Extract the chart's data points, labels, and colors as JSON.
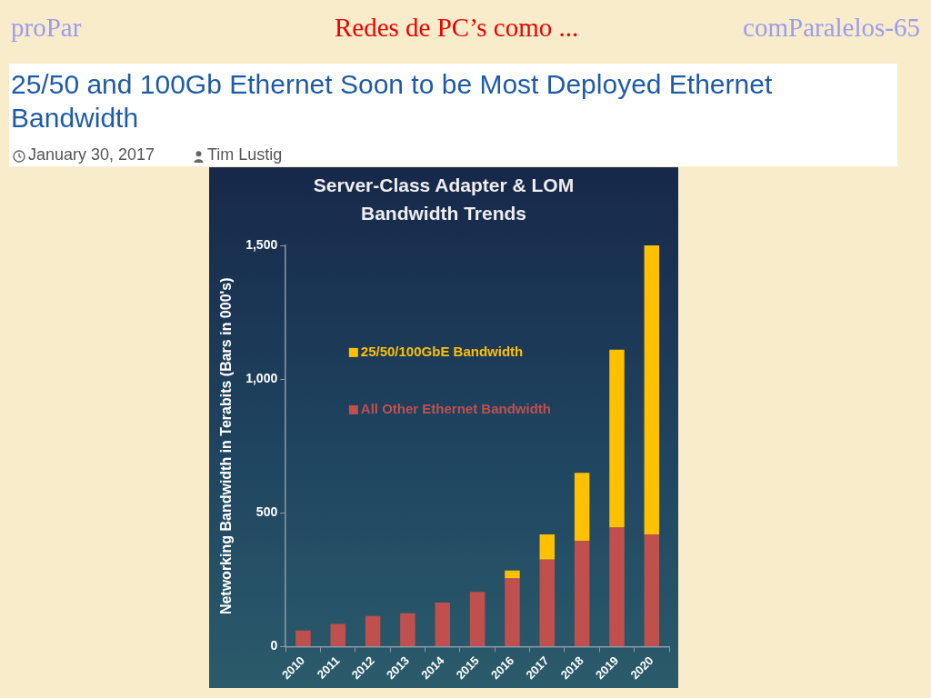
{
  "chart_data": {
    "type": "bar",
    "stacked": true,
    "title": "Server-Class Adapter & LOM Bandwidth Trends",
    "ylabel": "Networking Bandwidth in Terabits (Bars in 000's)",
    "categories": [
      "2010",
      "2011",
      "2012",
      "2013",
      "2014",
      "2015",
      "2016",
      "2017",
      "2018",
      "2019",
      "2020"
    ],
    "series": [
      {
        "name": "All Other Ethernet Bandwidth",
        "color": "#c0504d",
        "values": [
          60,
          85,
          115,
          125,
          165,
          205,
          255,
          325,
          395,
          445,
          420
        ]
      },
      {
        "name": "25/50/100GbE Bandwidth",
        "color": "#ffc000",
        "values": [
          null,
          null,
          null,
          null,
          null,
          null,
          30,
          95,
          255,
          665,
          1080
        ]
      }
    ],
    "ylim": [
      0,
      1500
    ],
    "yticks": [
      0,
      500,
      {
        "value": 1000,
        "label": "1,000"
      },
      {
        "value": 1500,
        "label": "1,500"
      }
    ],
    "legend": "top left",
    "annotations": [
      "proPar",
      "Redes de PC’s como ...",
      "comParalelos-65",
      "25/50 and 100Gb Ethernet Soon to be Most Deployed Ethernet Bandwidth",
      "January 30, 2017",
      "Tim Lustig"
    ]
  }
}
